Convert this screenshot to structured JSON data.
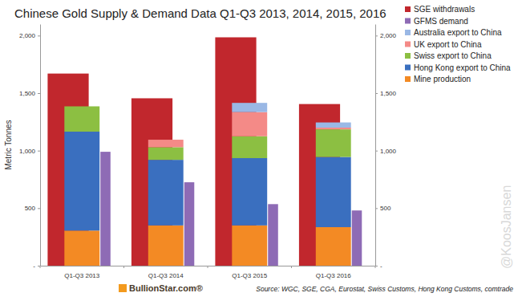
{
  "chart_data": {
    "type": "bar",
    "title": "Chinese Gold Supply & Demand Data Q1-Q3 2013, 2014, 2015, 2016",
    "y_label": "Metric Tonnes",
    "categories": [
      "Q1-Q3 2013",
      "Q1-Q3 2014",
      "Q1-Q3 2015",
      "Q1-Q3 2016"
    ],
    "series": [
      {
        "name": "SGE withdrawals",
        "color": "#c1272d",
        "values": [
          1670,
          1455,
          1985,
          1405
        ]
      },
      {
        "name": "GFMS demand",
        "color": "#8e6bb5",
        "values": [
          990,
          725,
          535,
          480
        ]
      },
      {
        "name": "Australia export to China",
        "color": "#9ab8e5",
        "values": [
          0,
          0,
          80,
          45
        ],
        "stacked": true
      },
      {
        "name": "UK export to China",
        "color": "#f48a87",
        "values": [
          0,
          65,
          210,
          15
        ],
        "stacked": true
      },
      {
        "name": "Swiss export to China",
        "color": "#8cbf42",
        "values": [
          220,
          110,
          190,
          240
        ],
        "stacked": true
      },
      {
        "name": "Hong Kong export to China",
        "color": "#3a6fbf",
        "values": [
          860,
          570,
          585,
          610
        ],
        "stacked": true
      },
      {
        "name": "Mine production",
        "color": "#f38a24",
        "values": [
          305,
          350,
          350,
          335
        ],
        "stacked": true
      }
    ],
    "ylim": [
      0,
      2100
    ],
    "yticks": [
      {
        "value": 0,
        "label": "-"
      },
      500,
      {
        "value": 1000,
        "label": "1,000"
      },
      {
        "value": 1500,
        "label": "1,500"
      },
      {
        "value": 2000,
        "label": "2,000"
      }
    ],
    "legend": "right",
    "annotations": [
      "BullionStar.com®",
      "Source: WGC, SGE, CGA, Eurostat, Swiss Customs, Hong Kong Customs, comtrade",
      "@KoosJansen"
    ]
  }
}
